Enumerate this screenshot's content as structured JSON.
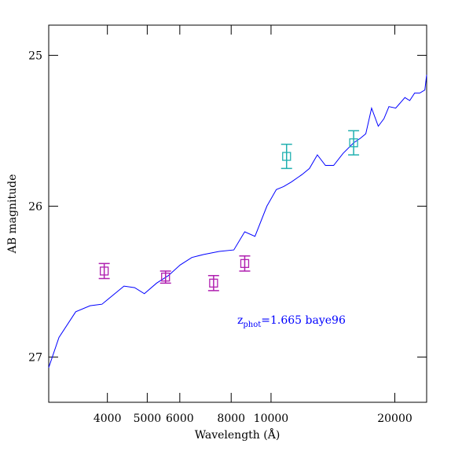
{
  "chart_data": {
    "type": "line",
    "xlabel": "Wavelength (Å)",
    "ylabel": "AB magnitude",
    "annotation": {
      "main": "z",
      "sub": "phot",
      "rest": "=1.665 baye96",
      "color": "#0000ff"
    },
    "xscale": "log",
    "xlim": [
      2880,
      23900
    ],
    "ylim": [
      27.3,
      24.8
    ],
    "xticks": [
      4000,
      5000,
      6000,
      8000,
      10000,
      20000
    ],
    "yticks": [
      25,
      26,
      27
    ],
    "line": {
      "color": "#0000ff",
      "x": [
        2880,
        3050,
        3350,
        3630,
        3880,
        4390,
        4660,
        4920,
        5270,
        5630,
        6010,
        6420,
        6860,
        7480,
        8120,
        8630,
        9140,
        9770,
        10300,
        10730,
        11200,
        11900,
        12400,
        12960,
        13560,
        14200,
        14970,
        15880,
        16490,
        17000,
        17560,
        18230,
        18820,
        19350,
        20100,
        21160,
        21740,
        22350,
        23000,
        23660,
        23900
      ],
      "values": [
        27.07,
        26.87,
        26.7,
        26.66,
        26.65,
        26.53,
        26.54,
        26.58,
        26.51,
        26.46,
        26.39,
        26.34,
        26.32,
        26.3,
        26.29,
        26.17,
        26.2,
        26.0,
        25.89,
        25.87,
        25.84,
        25.79,
        25.75,
        25.66,
        25.73,
        25.73,
        25.65,
        25.58,
        25.55,
        25.52,
        25.35,
        25.47,
        25.42,
        25.34,
        25.35,
        25.28,
        25.3,
        25.25,
        25.25,
        25.23,
        25.13
      ]
    },
    "points": {
      "x": [
        3930,
        5540,
        7250,
        8630,
        10910,
        15880
      ],
      "values": [
        26.43,
        26.47,
        26.51,
        26.38,
        25.67,
        25.58
      ],
      "errors": [
        0.05,
        0.04,
        0.05,
        0.05,
        0.08,
        0.08
      ],
      "colors": [
        "#b020b0",
        "#b020b0",
        "#b020b0",
        "#b020b0",
        "#20b0b0",
        "#20b0b0"
      ]
    }
  }
}
